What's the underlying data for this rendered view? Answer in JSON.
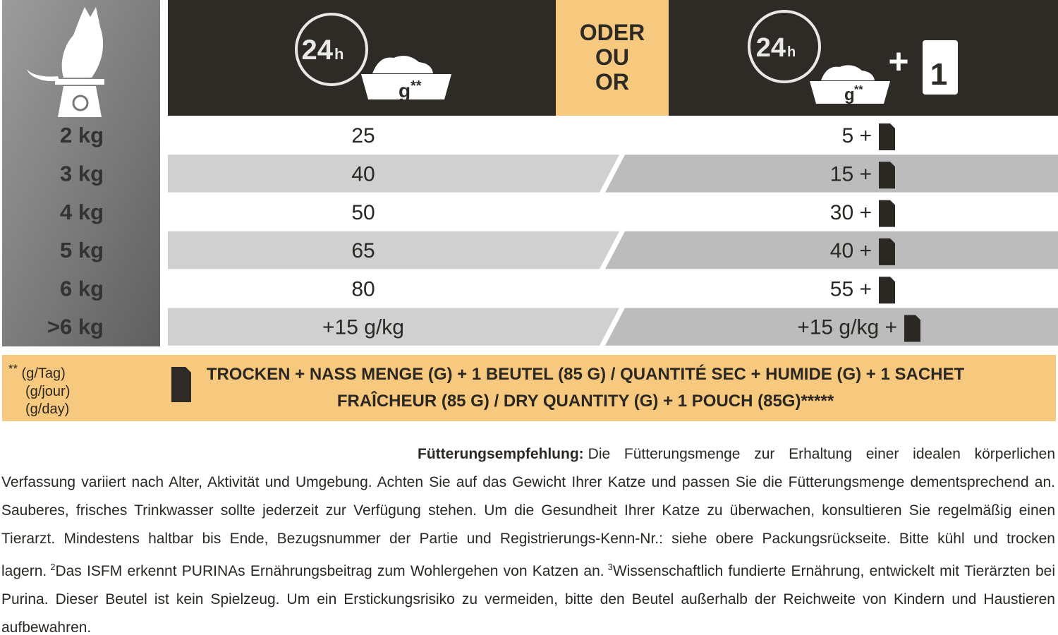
{
  "header": {
    "clock_text": "24",
    "clock_unit": "h",
    "bowl_label": "g",
    "bowl_mark": "**",
    "or_labels": [
      "ODER",
      "OU",
      "OR"
    ],
    "plus": "+",
    "pouch_count": "1"
  },
  "table": {
    "rows": [
      [
        "2 kg",
        "25",
        "5 +"
      ],
      [
        "3 kg",
        "40",
        "15 +"
      ],
      [
        "4 kg",
        "50",
        "30 +"
      ],
      [
        "5 kg",
        "65",
        "40 +"
      ],
      [
        "6 kg",
        "80",
        "55 +"
      ],
      [
        ">6 kg",
        "+15 g/kg",
        "+15 g/kg +"
      ]
    ]
  },
  "footnote": {
    "marker": "**",
    "units": [
      "(g/Tag)",
      "(g/jour)",
      "(g/day)"
    ],
    "legend": "TROCKEN + NASS MENGE (G) + 1 BEUTEL (85 G) / QUANTITÉ SEC + HUMIDE (G) + 1 SACHET FRAÎCHEUR (85 G) / DRY QUANTITY (G) + 1 POUCH (85G)*****"
  },
  "paragraph": {
    "heading": "Fütterungsempfehlung:",
    "text_1": "Die Fütterungsmenge zur Erhaltung einer idealen körperlichen Verfassung variiert nach Alter, Aktivität und Umgebung. Achten Sie auf das Gewicht Ihrer Katze und passen Sie die Fütterungsmenge dementsprechend an. Sauberes, frisches Trinkwasser sollte jederzeit zur Verfügung stehen. Um die Gesundheit Ihrer Katze zu überwachen, konsultieren Sie regelmäßig einen Tierarzt. Mindestens haltbar bis Ende, Bezugsnummer der Partie und Registrierungs-Kenn-Nr.: siehe obere Packungsrückseite. Bitte kühl und trocken lagern.",
    "sup_1": "2",
    "text_2": "Das ISFM erkennt PURINAs Ernährungsbeitrag zum Wohlergehen von Katzen an.",
    "sup_2": "3",
    "text_3": "Wissenschaftlich fundierte Ernährung, entwickelt mit Tierärzten bei Purina. Dieser Beutel ist kein Spielzeug. Um ein Erstickungsrisiko zu vermeiden, bitte den Beutel außerhalb der Reichweite von Kindern und Haustieren aufbewahren."
  }
}
